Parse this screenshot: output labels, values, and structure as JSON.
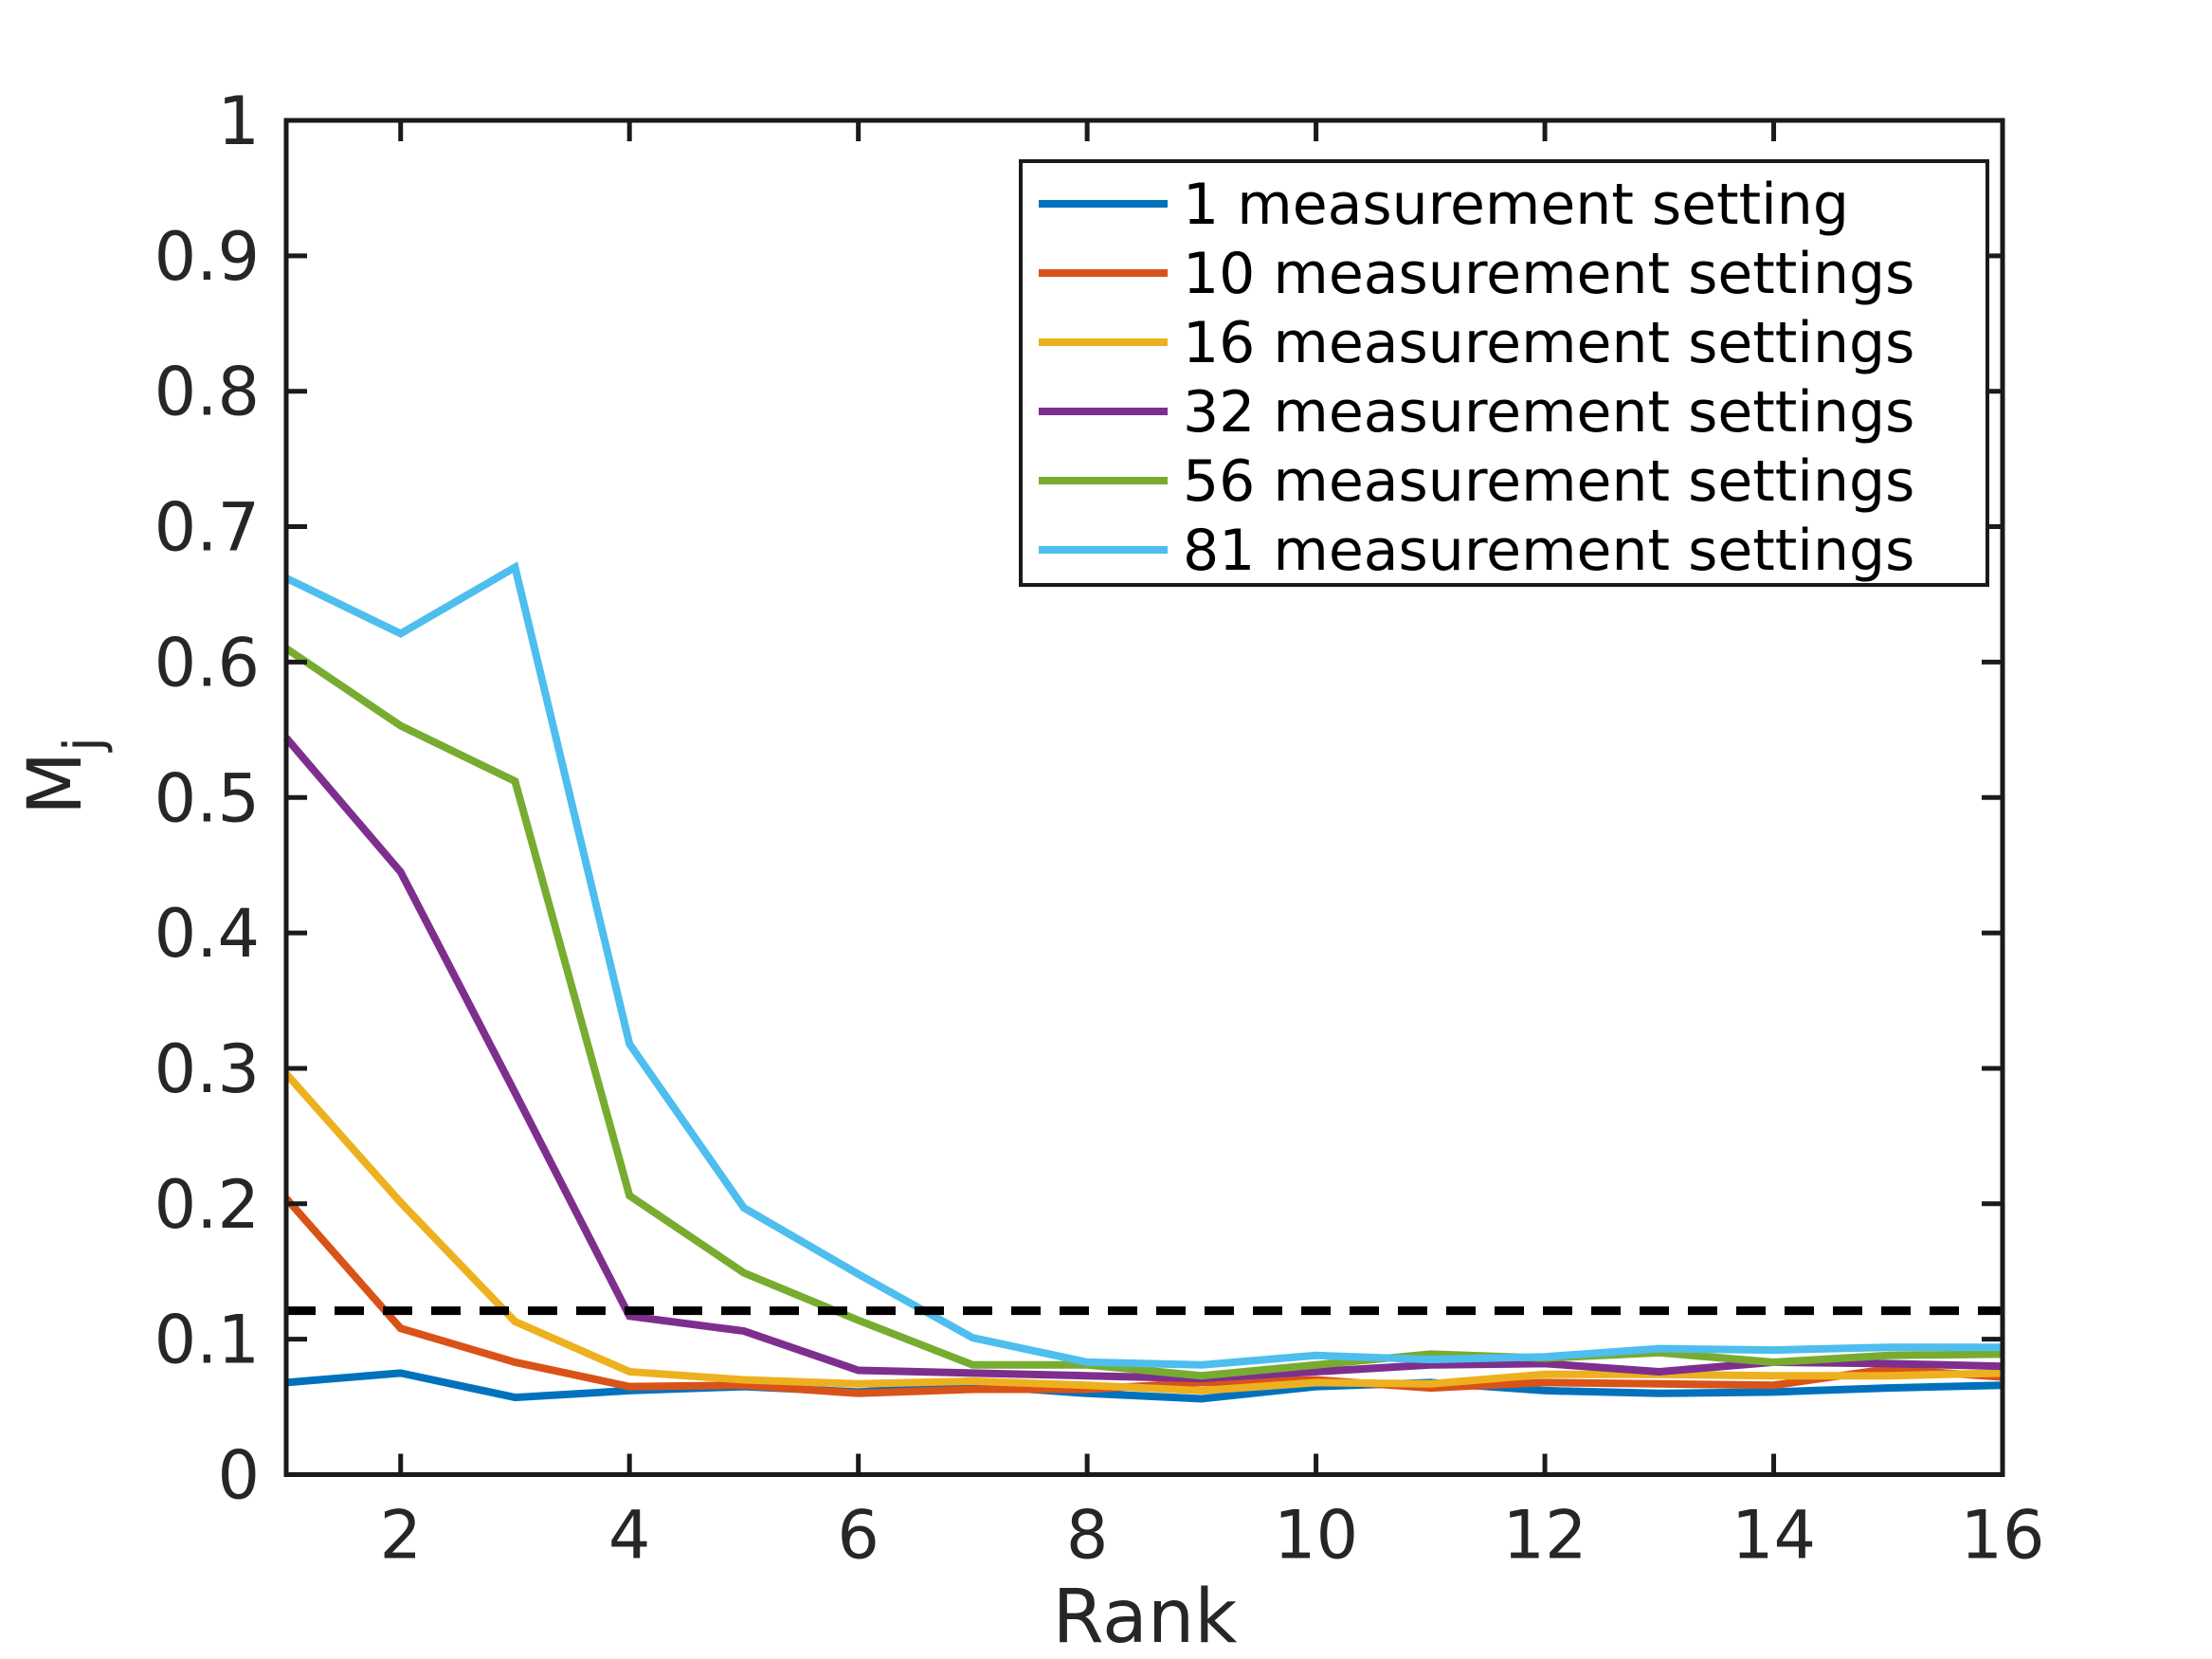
{
  "figure": {
    "background": "#ffffff",
    "axis_color": "#262626",
    "spine_color": "#1a1a1a",
    "xlabel": "Rank",
    "ylabel": "M_j",
    "ylabel_base": "M",
    "ylabel_sub": "j"
  },
  "chart_data": {
    "type": "line",
    "title": "",
    "xlabel": "Rank",
    "ylabel": "M_j",
    "xlim": [
      1,
      16
    ],
    "ylim": [
      0,
      1
    ],
    "grid": false,
    "legend_position": "northeast",
    "xticks": [
      2,
      4,
      6,
      8,
      10,
      12,
      14,
      16
    ],
    "xtick_labels": [
      "2",
      "4",
      "6",
      "8",
      "10",
      "12",
      "14",
      "16"
    ],
    "yticks": [
      0,
      0.1,
      0.2,
      0.3,
      0.4,
      0.5,
      0.6,
      0.7,
      0.8,
      0.9,
      1
    ],
    "ytick_labels": [
      "0",
      "0.1",
      "0.2",
      "0.3",
      "0.4",
      "0.5",
      "0.6",
      "0.7",
      "0.8",
      "0.9",
      "1"
    ],
    "x": [
      1,
      2,
      3,
      4,
      5,
      6,
      7,
      8,
      9,
      10,
      11,
      12,
      13,
      14,
      15,
      16
    ],
    "series": [
      {
        "name": "1 measurement setting",
        "color": "#0072BD",
        "values": [
          0.068,
          0.075,
          0.057,
          0.062,
          0.065,
          0.061,
          0.066,
          0.06,
          0.056,
          0.065,
          0.068,
          0.062,
          0.06,
          0.061,
          0.064,
          0.066
        ]
      },
      {
        "name": "10 measurement settings",
        "color": "#D95319",
        "values": [
          0.204,
          0.108,
          0.083,
          0.065,
          0.066,
          0.06,
          0.063,
          0.063,
          0.068,
          0.07,
          0.064,
          0.068,
          0.067,
          0.066,
          0.078,
          0.072
        ]
      },
      {
        "name": "16 measurement settings",
        "color": "#EDB120",
        "values": [
          0.296,
          0.201,
          0.113,
          0.076,
          0.07,
          0.067,
          0.069,
          0.066,
          0.062,
          0.068,
          0.067,
          0.074,
          0.074,
          0.073,
          0.073,
          0.075
        ]
      },
      {
        "name": "32 measurement settings",
        "color": "#7E2F8E",
        "values": [
          0.544,
          0.445,
          0.282,
          0.117,
          0.106,
          0.077,
          0.075,
          0.073,
          0.071,
          0.076,
          0.081,
          0.082,
          0.076,
          0.083,
          0.082,
          0.08
        ]
      },
      {
        "name": "56 measurement settings",
        "color": "#77AC30",
        "values": [
          0.61,
          0.553,
          0.512,
          0.206,
          0.149,
          0.114,
          0.081,
          0.081,
          0.073,
          0.081,
          0.089,
          0.086,
          0.09,
          0.083,
          0.088,
          0.089
        ]
      },
      {
        "name": "81 measurement settings",
        "color": "#4DBEEE",
        "values": [
          0.662,
          0.621,
          0.67,
          0.318,
          0.197,
          0.148,
          0.101,
          0.083,
          0.081,
          0.088,
          0.085,
          0.087,
          0.093,
          0.092,
          0.094,
          0.094
        ]
      }
    ],
    "threshold_line": {
      "y": 0.121,
      "style": "dashed",
      "color": "#000000"
    }
  }
}
